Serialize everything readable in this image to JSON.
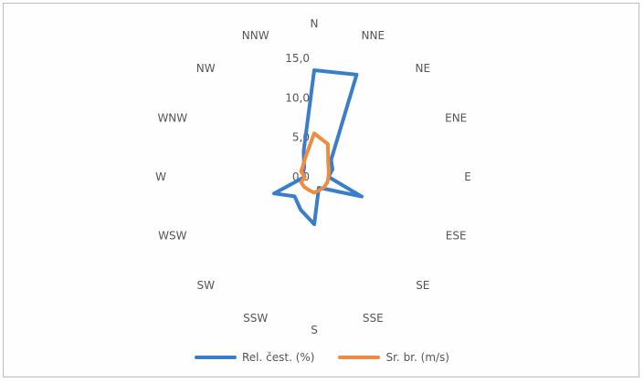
{
  "chart_data": {
    "type": "radar",
    "title": "",
    "categories": [
      "N",
      "NNE",
      "NE",
      "ENE",
      "E",
      "ESE",
      "SE",
      "SSE",
      "S",
      "SSW",
      "SW",
      "WSW",
      "W",
      "WNW",
      "NW",
      "NNW"
    ],
    "radial_ticks": [
      "0,0",
      "5,0",
      "10,0",
      "15,0"
    ],
    "rmin": 0,
    "rmax": 15,
    "legend_position": "bottom",
    "series": [
      {
        "name": "Rel. čest. (%)",
        "color": "#3a7dc9",
        "values": [
          13.5,
          14.0,
          3.0,
          2.5,
          1.8,
          6.5,
          2.2,
          1.5,
          6.0,
          4.5,
          3.5,
          5.5,
          1.2,
          1.5,
          1.8,
          3.5
        ]
      },
      {
        "name": "Sr. br. (m/s)",
        "color": "#ef8c3f",
        "values": [
          5.5,
          4.5,
          2.5,
          2.0,
          1.8,
          1.8,
          1.8,
          1.8,
          2.0,
          1.8,
          1.8,
          1.8,
          1.2,
          1.8,
          2.0,
          2.8
        ]
      }
    ]
  }
}
